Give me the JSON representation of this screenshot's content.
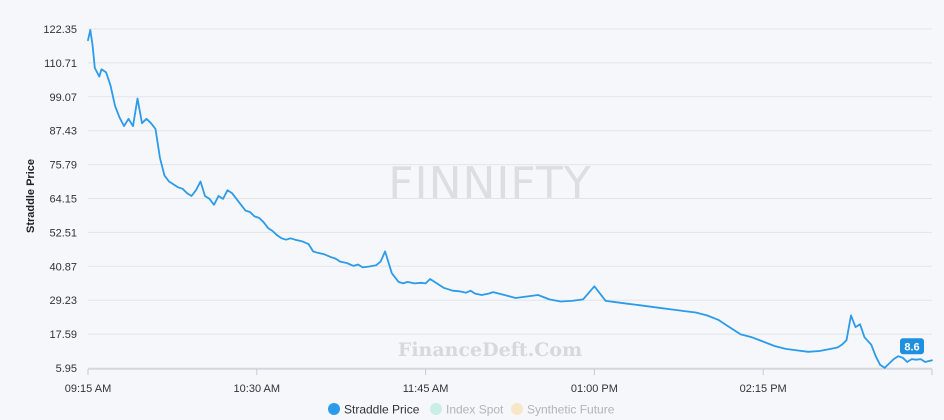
{
  "chart_data": {
    "type": "line",
    "title": "",
    "watermark": "FINNIFTY",
    "brand_watermark": "FinanceDeft.Com",
    "ylabel": "Straddle Price",
    "xlabel": "",
    "y_ticks": [
      "5.95",
      "17.59",
      "29.23",
      "40.87",
      "52.51",
      "64.15",
      "75.79",
      "87.43",
      "99.07",
      "110.71",
      "122.35"
    ],
    "ylim": [
      5.95,
      122.35
    ],
    "x_ticks": [
      "09:15 AM",
      "10:30 AM",
      "11:45 AM",
      "01:00 PM",
      "02:15 PM"
    ],
    "x_range_minutes": [
      0,
      375
    ],
    "grid": true,
    "legend_position": "bottom",
    "last_value_label": "8.6",
    "series": [
      {
        "name": "Straddle Price",
        "color": "#2b9bea",
        "visible": true,
        "x": [
          0,
          1,
          2,
          3,
          4,
          5,
          6,
          8,
          10,
          12,
          14,
          16,
          18,
          20,
          22,
          24,
          26,
          28,
          30,
          32,
          34,
          36,
          38,
          40,
          42,
          44,
          46,
          48,
          50,
          52,
          54,
          56,
          58,
          60,
          62,
          64,
          66,
          68,
          70,
          72,
          74,
          76,
          78,
          80,
          82,
          84,
          86,
          88,
          90,
          92,
          95,
          98,
          100,
          102,
          105,
          108,
          110,
          112,
          115,
          118,
          120,
          122,
          125,
          128,
          130,
          132,
          135,
          138,
          140,
          142,
          145,
          148,
          150,
          152,
          155,
          158,
          160,
          162,
          165,
          168,
          170,
          172,
          175,
          178,
          180,
          185,
          190,
          195,
          200,
          205,
          210,
          215,
          220,
          225,
          230,
          235,
          240,
          245,
          250,
          255,
          260,
          265,
          270,
          275,
          280,
          285,
          290,
          295,
          300,
          305,
          310,
          315,
          320,
          325,
          330,
          333,
          335,
          337,
          339,
          341,
          343,
          345,
          348,
          350,
          352,
          354,
          356,
          358,
          360,
          362,
          364,
          366,
          368,
          370,
          372,
          375
        ],
        "y": [
          118.5,
          122.0,
          117.0,
          109.0,
          107.5,
          106.0,
          108.5,
          107.5,
          103.0,
          96.0,
          92.0,
          89.0,
          91.5,
          89.0,
          98.5,
          90.0,
          91.5,
          90.0,
          88.0,
          78.0,
          72.0,
          70.0,
          69.0,
          68.0,
          67.5,
          66.0,
          65.0,
          67.0,
          70.0,
          65.0,
          64.0,
          62.0,
          65.0,
          64.0,
          67.0,
          66.0,
          64.0,
          62.0,
          60.0,
          59.5,
          58.0,
          57.5,
          56.0,
          54.0,
          53.0,
          51.5,
          50.5,
          50.0,
          50.5,
          50.0,
          49.5,
          48.5,
          46.0,
          45.5,
          45.0,
          44.0,
          43.5,
          42.5,
          42.0,
          41.0,
          41.5,
          40.5,
          40.8,
          41.2,
          42.5,
          46.0,
          38.5,
          35.5,
          35.0,
          35.5,
          35.0,
          35.2,
          35.0,
          36.5,
          35.0,
          33.5,
          33.0,
          32.5,
          32.3,
          31.8,
          32.5,
          31.5,
          31.0,
          31.5,
          32.0,
          31.0,
          30.0,
          30.5,
          31.0,
          29.5,
          28.8,
          29.0,
          29.5,
          34.0,
          29.0,
          28.5,
          28.0,
          27.5,
          27.0,
          26.5,
          26.0,
          25.5,
          25.0,
          24.0,
          22.5,
          20.0,
          17.5,
          16.5,
          15.0,
          13.5,
          12.5,
          12.0,
          11.5,
          11.8,
          12.5,
          13.0,
          14.0,
          15.5,
          24.0,
          20.0,
          21.0,
          16.5,
          14.0,
          10.0,
          7.0,
          6.0,
          7.5,
          9.0,
          10.0,
          9.5,
          8.0,
          9.0,
          8.8,
          9.0,
          8.0,
          8.6
        ]
      },
      {
        "name": "Index Spot",
        "color": "#c9efe4",
        "visible": false
      },
      {
        "name": "Synthetic Future",
        "color": "#f7e6c8",
        "visible": false
      }
    ]
  }
}
